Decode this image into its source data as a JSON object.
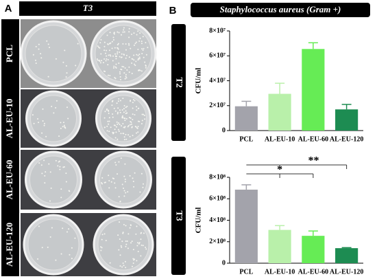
{
  "panel_a": {
    "label": "A",
    "header": "T3",
    "rows": [
      "PCL",
      "AL-EU-10",
      "AL-EU-60",
      "AL-EU-120"
    ]
  },
  "panel_b": {
    "label": "B",
    "header": "Staphylococcus aureus (Gram +)"
  },
  "chart_data": [
    {
      "type": "bar",
      "title": "T2",
      "y_label": "CFU/ml",
      "categories": [
        "PCL",
        "AL-EU-10",
        "AL-EU-60",
        "AL-EU-120"
      ],
      "values": [
        19500000,
        29500000,
        65500000,
        17000000
      ],
      "errors": [
        4000000,
        8500000,
        5000000,
        4000000
      ],
      "colors": [
        "#a3a3ab",
        "#b9f0aa",
        "#66ec55",
        "#1d8c52"
      ],
      "ylim": [
        0,
        80000000
      ],
      "yticks": [
        0,
        {
          "value": 20000000,
          "label": "2×10⁷"
        },
        {
          "value": 40000000,
          "label": "4×10⁷"
        },
        {
          "value": 60000000,
          "label": "6×10⁷"
        },
        {
          "value": 80000000,
          "label": "8×10⁷"
        }
      ],
      "grid": false
    },
    {
      "type": "bar",
      "title": "T3",
      "y_label": "CFU/ml",
      "categories": [
        "PCL",
        "AL-EU-10",
        "AL-EU-60",
        "AL-EU-120"
      ],
      "values": [
        685000000,
        310000000,
        255000000,
        140000000
      ],
      "errors": [
        45000000,
        40000000,
        45000000,
        5000000
      ],
      "colors": [
        "#a3a3ab",
        "#b9f0aa",
        "#66ec55",
        "#1d8c52"
      ],
      "ylim": [
        0,
        800000000
      ],
      "yticks": [
        0,
        {
          "value": 200000000,
          "label": "2×10⁸"
        },
        {
          "value": 400000000,
          "label": "4×10⁸"
        },
        {
          "value": 600000000,
          "label": "6×10⁸"
        },
        {
          "value": 800000000,
          "label": "8×10⁸"
        }
      ],
      "annotations": [
        "*",
        "**"
      ],
      "grid": false
    }
  ]
}
